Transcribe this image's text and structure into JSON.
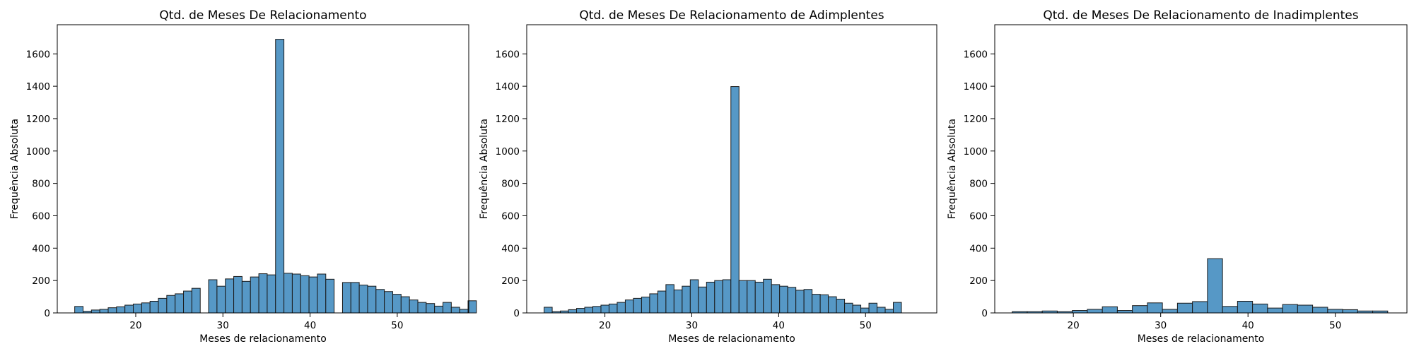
{
  "chart_data": [
    {
      "type": "bar",
      "title": "Qtd. de Meses De Relacionamento",
      "xlabel": "Meses de relacionamento",
      "ylabel": "Frequência Absoluta",
      "xlim": [
        11.0,
        58.2
      ],
      "ylim": [
        0,
        1780
      ],
      "xticks": [
        20,
        30,
        40,
        50
      ],
      "yticks": [
        0,
        200,
        400,
        600,
        800,
        1000,
        1200,
        1400,
        1600
      ],
      "bin_start": 13,
      "bin_width": 0.96,
      "values": [
        40,
        10,
        18,
        22,
        32,
        38,
        48,
        55,
        62,
        72,
        90,
        108,
        118,
        135,
        152,
        0,
        205,
        165,
        210,
        225,
        195,
        222,
        242,
        235,
        1690,
        245,
        240,
        230,
        222,
        240,
        208,
        0,
        188,
        188,
        172,
        165,
        145,
        132,
        115,
        100,
        80,
        65,
        58,
        42,
        65,
        35,
        22,
        75
      ],
      "grid": false
    },
    {
      "type": "bar",
      "title": "Qtd. de Meses De Relacionamento de Adimplentes",
      "xlabel": "Meses de relacionamento",
      "ylabel": "Frequência Absoluta",
      "xlim": [
        11.0,
        58.2
      ],
      "ylim": [
        0,
        1780
      ],
      "xticks": [
        20,
        30,
        40,
        50
      ],
      "yticks": [
        0,
        200,
        400,
        600,
        800,
        1000,
        1200,
        1400,
        1600
      ],
      "bin_start": 13,
      "bin_width": 0.9348,
      "values": [
        35,
        8,
        12,
        20,
        28,
        35,
        40,
        48,
        55,
        65,
        80,
        90,
        98,
        118,
        135,
        175,
        142,
        165,
        205,
        160,
        190,
        200,
        205,
        1398,
        200,
        200,
        190,
        208,
        175,
        165,
        158,
        140,
        145,
        115,
        112,
        100,
        85,
        60,
        48,
        30,
        60,
        35,
        22,
        65
      ],
      "grid": false
    },
    {
      "type": "bar",
      "title": "Qtd. de Meses De Relacionamento de Inadimplentes",
      "xlabel": "Meses de relacionamento",
      "ylabel": "Frequência Absoluta",
      "xlim": [
        11.0,
        58.2
      ],
      "ylim": [
        0,
        1780
      ],
      "xticks": [
        20,
        30,
        40,
        50
      ],
      "yticks": [
        0,
        200,
        400,
        600,
        800,
        1000,
        1200,
        1400,
        1600
      ],
      "bin_start": 13,
      "bin_width": 1.72,
      "values": [
        8,
        8,
        12,
        8,
        15,
        22,
        38,
        15,
        45,
        62,
        22,
        60,
        70,
        335,
        40,
        72,
        55,
        30,
        52,
        48,
        35,
        22,
        20,
        12,
        12
      ],
      "grid": false
    }
  ]
}
